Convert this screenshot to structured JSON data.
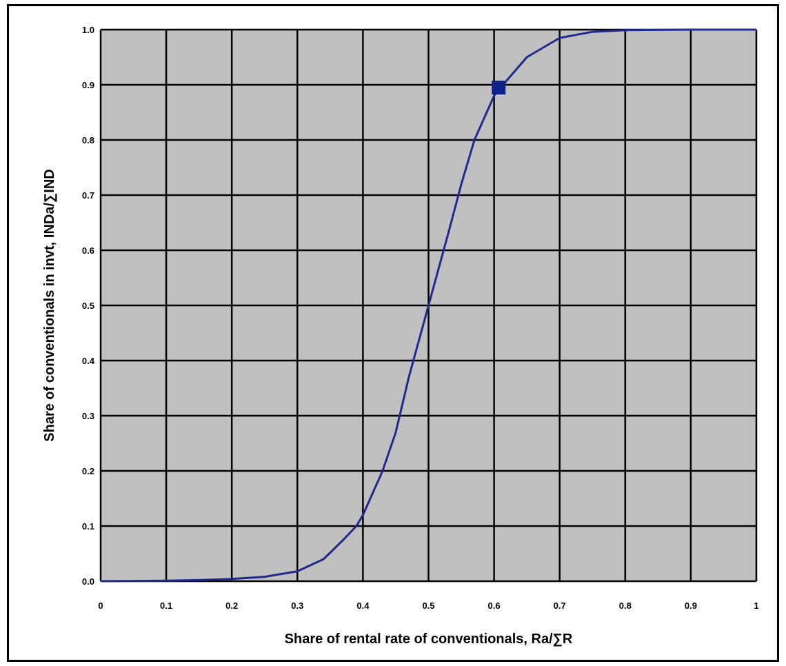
{
  "chart_data": {
    "type": "line",
    "title": "",
    "xlabel": "Share of rental rate of conventionals, Ra/∑R",
    "ylabel": "Share of conventionals in invt, INDa/∑IND",
    "xlim": [
      0,
      1
    ],
    "ylim": [
      0,
      1
    ],
    "x_ticks": [
      "0",
      "0.1",
      "0.2",
      "0.3",
      "0.4",
      "0.5",
      "0.6",
      "0.7",
      "0.8",
      "0.9",
      "1"
    ],
    "y_ticks": [
      "0.0",
      "0.1",
      "0.2",
      "0.3",
      "0.4",
      "0.5",
      "0.6",
      "0.7",
      "0.8",
      "0.9",
      "1.0"
    ],
    "grid": true,
    "legend": "none",
    "colors": {
      "plot_background": "#c0c0c0",
      "grid": "#000000",
      "line": "#1f2a8c",
      "marker": "#10208a"
    },
    "series": [
      {
        "x": [
          0,
          0.1,
          0.15,
          0.2,
          0.25,
          0.3,
          0.34,
          0.37,
          0.39,
          0.4,
          0.43,
          0.45,
          0.47,
          0.5,
          0.53,
          0.55,
          0.57,
          0.6,
          0.61,
          0.65,
          0.7,
          0.75,
          0.8,
          0.9,
          1.0
        ],
        "y": [
          0,
          0.001,
          0.002,
          0.004,
          0.008,
          0.018,
          0.04,
          0.075,
          0.1,
          0.12,
          0.2,
          0.27,
          0.37,
          0.5,
          0.63,
          0.72,
          0.8,
          0.88,
          0.895,
          0.95,
          0.985,
          0.996,
          0.999,
          1.0,
          1.0
        ]
      }
    ],
    "marker_point": {
      "x": 0.607,
      "y": 0.895,
      "shape": "square"
    }
  }
}
